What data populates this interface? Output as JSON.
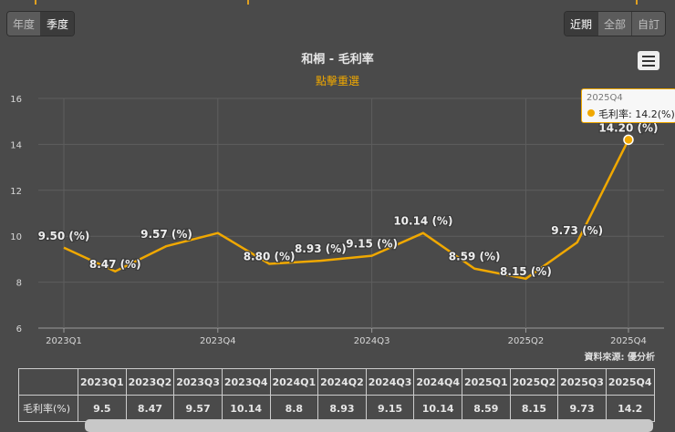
{
  "period_toggle": {
    "annual": "年度",
    "quarterly": "季度",
    "selected": "quarterly"
  },
  "range_toggle": {
    "recent": "近期",
    "all": "全部",
    "custom": "自訂",
    "selected": "recent"
  },
  "chart_data": {
    "type": "line",
    "title": "和桐 - 毛利率",
    "subtitle": "點擊重選",
    "categories": [
      "2023Q1",
      "2023Q2",
      "2023Q3",
      "2023Q4",
      "2024Q1",
      "2024Q2",
      "2024Q3",
      "2024Q4",
      "2025Q1",
      "2025Q2",
      "2025Q3",
      "2025Q4"
    ],
    "series": [
      {
        "name": "毛利率",
        "values": [
          9.5,
          8.47,
          9.57,
          10.14,
          8.8,
          8.93,
          9.15,
          10.14,
          8.59,
          8.15,
          9.73,
          14.2
        ]
      }
    ],
    "data_labels": [
      "9.50 (%)",
      "8.47 (%)",
      "9.57 (%)",
      "",
      "8.80 (%)",
      "8.93 (%)",
      "9.15 (%)",
      "10.14 (%)",
      "8.59 (%)",
      "8.15 (%)",
      "9.73 (%)",
      "14.20 (%)"
    ],
    "x_tick_labels": [
      "2023Q1",
      "2023Q4",
      "2024Q3",
      "2025Q2",
      "2025Q4"
    ],
    "y_ticks": [
      "6",
      "8",
      "10",
      "12",
      "14",
      "16"
    ],
    "ylim": [
      6,
      16
    ],
    "color": "#f0a800",
    "highlighted": "2025Q4"
  },
  "tooltip": {
    "header": "2025Q4",
    "text": "毛利率: 14.2(%)"
  },
  "credit": "資料來源: 優分析",
  "table": {
    "header": [
      "2023Q1",
      "2023Q2",
      "2023Q3",
      "2023Q4",
      "2024Q1",
      "2024Q2",
      "2024Q3",
      "2024Q4",
      "2025Q1",
      "2025Q2",
      "2025Q3",
      "2025Q4"
    ],
    "row_label": "毛利率(%)",
    "values": [
      "9.5",
      "8.47",
      "9.57",
      "10.14",
      "8.8",
      "8.93",
      "9.15",
      "10.14",
      "8.59",
      "8.15",
      "9.73",
      "14.2"
    ]
  }
}
